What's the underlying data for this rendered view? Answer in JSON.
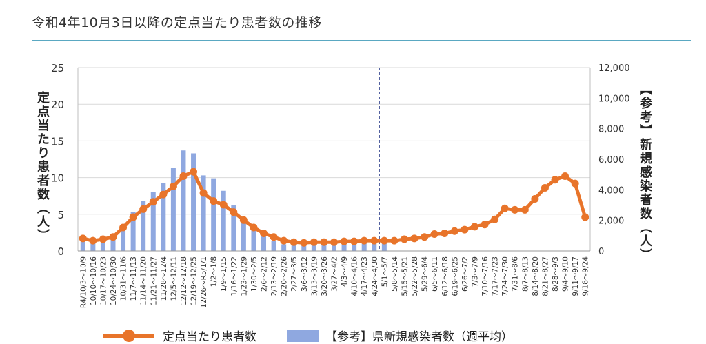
{
  "page": {
    "title": "令和4年10月3日以降の定点当たり患者数の推移"
  },
  "chart_data": {
    "type": "bar+line",
    "y_left_label": "定点当たり患者数（人）",
    "y_right_label": "【参考】新規感染者数（人）",
    "y_left_range": [
      0,
      25
    ],
    "y_left_ticks": [
      "0",
      "5",
      "10",
      "15",
      "20",
      "25"
    ],
    "y_right_range": [
      0,
      12000
    ],
    "y_right_ticks": [
      "0",
      "2,000",
      "4,000",
      "6,000",
      "8,000",
      "10,000",
      "12,000"
    ],
    "grid": true,
    "divider_category": "5/1～5/7",
    "categories": [
      "R4/10/3～10/9",
      "10/10～10/16",
      "10/17～10/23",
      "10/24～10/30",
      "10/31～11/6",
      "11/7～11/13",
      "11/14～11/20",
      "11/21～11/27",
      "11/28～12/4",
      "12/5～12/11",
      "12/12～12/18",
      "12/19～12/25",
      "12/26～R5/1/1",
      "1/2～1/8",
      "1/9～1/15",
      "1/16～1/22",
      "1/23～1/29",
      "1/30～2/5",
      "2/6～2/12",
      "2/13～2/19",
      "2/20～2/26",
      "2/27～3/5",
      "3/6～3/12",
      "3/13～3/19",
      "3/20～3/26",
      "3/27～4/2",
      "4/3～4/9",
      "4/10～4/16",
      "4/17～4/23",
      "4/24～4/30",
      "5/1～5/7",
      "5/8～5/14",
      "5/15～5/21",
      "5/22～5/28",
      "5/29～6/4",
      "6/5～6/11",
      "6/12～6/18",
      "6/19～6/25",
      "6/26～7/2",
      "7/3～7/9",
      "7/10～7/16",
      "7/17～7/23",
      "7/24～7/30",
      "7/31～8/6",
      "8/7～8/13",
      "8/14～8/20",
      "8/21～8/27",
      "8/28～9/3",
      "9/4～9/10",
      "9/11～9/17",
      "9/18～9/24"
    ],
    "series": [
      {
        "name": "定点当たり患者数",
        "type": "line",
        "axis": "left",
        "color": "#e8742a",
        "values": [
          1.7,
          1.4,
          1.6,
          1.9,
          3.2,
          4.6,
          5.7,
          6.7,
          7.7,
          8.8,
          10.2,
          10.8,
          7.9,
          6.8,
          6.3,
          5.3,
          4.2,
          3.2,
          2.4,
          1.9,
          1.4,
          1.2,
          1.1,
          1.2,
          1.2,
          1.2,
          1.3,
          1.3,
          1.4,
          1.4,
          1.4,
          1.4,
          1.6,
          1.7,
          1.9,
          2.3,
          2.4,
          2.7,
          2.9,
          3.3,
          3.6,
          4.3,
          5.8,
          5.6,
          5.6,
          7.1,
          8.6,
          9.7,
          10.2,
          9.2,
          4.6
        ]
      },
      {
        "name": "【参考】県新規感染者数（週平均）",
        "type": "bar",
        "axis": "left",
        "color": "#8fa8e0",
        "values": [
          1.6,
          1.3,
          1.6,
          2.0,
          3.6,
          5.3,
          6.8,
          8.0,
          9.3,
          11.3,
          13.7,
          13.3,
          10.3,
          9.9,
          8.2,
          6.2,
          4.3,
          3.0,
          2.0,
          1.4,
          0.9,
          0.8,
          0.7,
          0.8,
          0.8,
          0.8,
          0.9,
          0.9,
          1.0,
          1.0,
          1.1,
          null,
          null,
          null,
          null,
          null,
          null,
          null,
          null,
          null,
          null,
          null,
          null,
          null,
          null,
          null,
          null,
          null,
          null,
          null,
          null
        ]
      }
    ]
  },
  "legend": {
    "line_label": "定点当たり患者数",
    "bar_label": "【参考】県新規感染者数（週平均）"
  }
}
